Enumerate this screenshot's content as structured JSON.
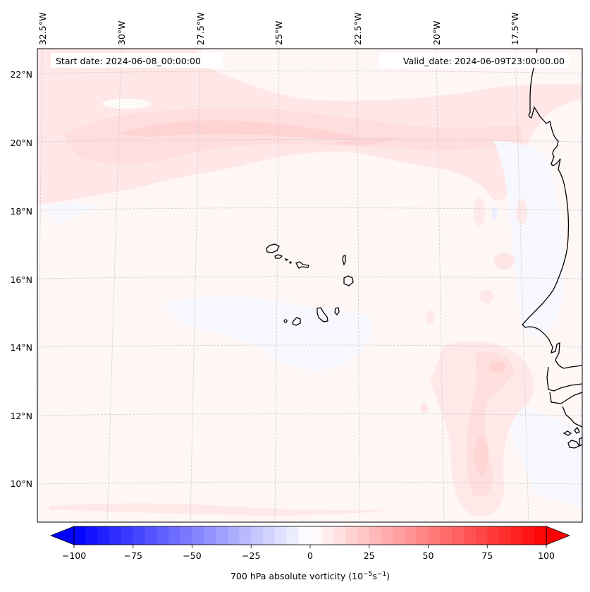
{
  "figure": {
    "domain": "map",
    "variable": "700 hPa absolute vorticity",
    "annotations": {
      "start_date": "Start date: 2024-06-08_00:00:00",
      "valid_date": "Valid_date: 2024-06-09T23:00:00.00"
    },
    "longitude_labels": [
      "32.5°W",
      "30°W",
      "27.5°W",
      "25°W",
      "22.5°W",
      "20°W",
      "17.5°W"
    ],
    "latitude_labels": [
      "22°N",
      "20°N",
      "18°N",
      "16°N",
      "14°N",
      "12°N",
      "10°N"
    ],
    "colorbar": {
      "label_prefix": "700 hPa absolute vorticity (10",
      "label_exp1": "−5",
      "label_mid": "s",
      "label_exp2": "−1",
      "label_suffix": ")",
      "ticks": [
        "−100",
        "−75",
        "−50",
        "−25",
        "0",
        "25",
        "50",
        "75",
        "100"
      ],
      "cmap": "bwr",
      "extend": "both"
    }
  },
  "chart_data": {
    "type": "heatmap",
    "title": "",
    "projection": "Lambert conformal",
    "region": "Eastern tropical Atlantic – Cape Verde Islands and West African coast (Senegal/Gambia/Guinea-Bissau)",
    "extent": {
      "lon_min": -32.8,
      "lon_max": -15.6,
      "lat_min": 8.9,
      "lat_max": 22.8
    },
    "xticks_lon": [
      -32.5,
      -30,
      -27.5,
      -25,
      -22.5,
      -20,
      -17.5
    ],
    "yticks_lat": [
      22,
      20,
      18,
      16,
      14,
      12,
      10
    ],
    "grid": true,
    "colorbar": {
      "label": "700 hPa absolute vorticity (10^-5 s^-1)",
      "vmin": -100,
      "vmax": 100,
      "levels_step": 5,
      "ticks": [
        -100,
        -75,
        -50,
        -25,
        0,
        25,
        50,
        75,
        100
      ],
      "extend": "both",
      "placement": "bottom"
    },
    "features": [
      {
        "name": "zonal positive vorticity band",
        "lat_approx": 20.5,
        "lon_range": [
          -32,
          -17
        ],
        "value_range": [
          10,
          25
        ]
      },
      {
        "name": "positive vorticity lobe off Senegal/Gambia coast",
        "lon_approx": -19.5,
        "lat_range": [
          10,
          13.5
        ],
        "value_range": [
          10,
          25
        ]
      },
      {
        "name": "weak negative areas",
        "note": "scattered near 15-18°N and coastal Mauritania",
        "value_range": [
          -10,
          0
        ]
      },
      {
        "name": "background",
        "value_range": [
          0,
          5
        ]
      }
    ],
    "annotations": [
      "Start date: 2024-06-08_00:00:00",
      "Valid_date: 2024-06-09T23:00:00.00"
    ]
  }
}
